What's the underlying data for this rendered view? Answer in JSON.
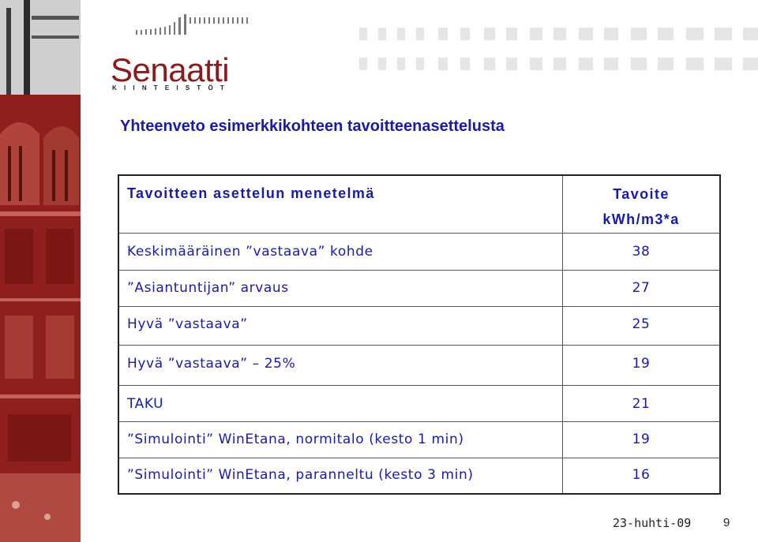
{
  "logo": {
    "name": "Senaatti",
    "subtitle": "KIINTEISTÖT"
  },
  "colors": {
    "brand_red": "#8b1a1a",
    "title_blue": "#1a1aa8"
  },
  "slide": {
    "title": "Yhteenveto esimerkkikohteen tavoitteenasettelusta"
  },
  "table": {
    "header_left": "Tavoitteen asettelun menetelmä",
    "header_right_line1": "Tavoite",
    "header_right_line2": "kWh/m3*a",
    "rows": [
      {
        "method": "Keskimääräinen ”vastaava” kohde",
        "value": "38"
      },
      {
        "method": "”Asiantuntijan” arvaus",
        "value": "27"
      },
      {
        "method": "Hyvä ”vastaava”",
        "value": "25"
      },
      {
        "method": "Hyvä ”vastaava” – 25%",
        "value": "19"
      },
      {
        "method": "TAKU",
        "value": "21"
      },
      {
        "method": "”Simulointi” WinEtana, normitalo (kesto 1 min)",
        "value": "19"
      },
      {
        "method": "”Simulointi” WinEtana, paranneltu (kesto 3 min)",
        "value": "16"
      }
    ]
  },
  "footer": {
    "date": "23-huhti-09",
    "page": "9"
  }
}
